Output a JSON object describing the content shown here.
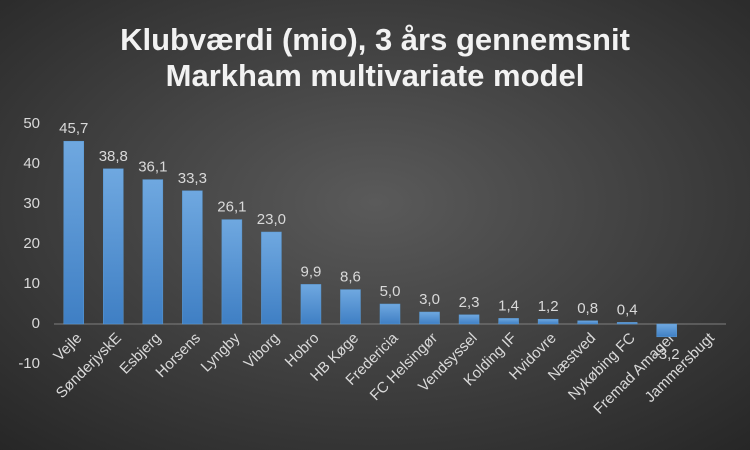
{
  "chart_data": {
    "type": "bar",
    "title": "Klubværdi (mio), 3 års gennemsnit",
    "subtitle": "Markham multivariate model",
    "categories": [
      "Vejle",
      "SønderjyskE",
      "Esbjerg",
      "Horsens",
      "Lyngby",
      "Viborg",
      "Hobro",
      "HB Køge",
      "Fredericia",
      "FC Helsingør",
      "Vendsyssel",
      "Kolding IF",
      "Hvidovre",
      "Næstved",
      "Nykøbing FC",
      "Fremad Amager",
      "Jammersbugt"
    ],
    "values": [
      45.7,
      38.8,
      36.1,
      33.3,
      26.1,
      23.0,
      9.9,
      8.6,
      5.0,
      3.0,
      2.3,
      1.4,
      1.2,
      0.8,
      0.4,
      -3.2,
      null
    ],
    "value_labels": [
      "45,7",
      "38,8",
      "36,1",
      "33,3",
      "26,1",
      "23,0",
      "9,9",
      "8,6",
      "5,0",
      "3,0",
      "2,3",
      "1,4",
      "1,2",
      "0,8",
      "0,4",
      "-3,2",
      null
    ],
    "color": "#5b9bd5",
    "ylim": [
      -10,
      50
    ],
    "yticks": [
      -10,
      0,
      10,
      20,
      30,
      40,
      50
    ],
    "grid": false
  }
}
